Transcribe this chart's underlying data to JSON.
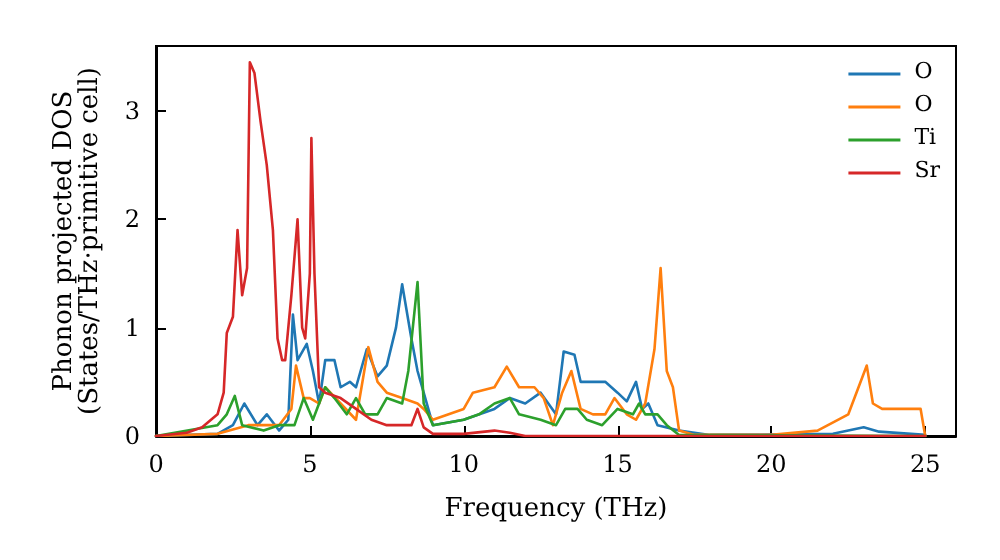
{
  "chart_data": {
    "type": "line",
    "xlabel": "Frequency (THz)",
    "ylabel": "Phonon projected DOS\n(States/THz·primitive cell)",
    "xlim": [
      0,
      26
    ],
    "ylim": [
      0,
      3.6
    ],
    "xticks": [
      0,
      5,
      10,
      15,
      20,
      25
    ],
    "yticks": [
      0,
      1,
      2,
      3
    ],
    "grid": false,
    "legend": "top right",
    "marker": "none",
    "line_style": "solid",
    "series": [
      {
        "name": "O",
        "color": "#1f77b4",
        "x": [
          0,
          2,
          2.5,
          2.87,
          3.3,
          3.6,
          4,
          4.3,
          4.45,
          4.6,
          4.9,
          5.1,
          5.3,
          5.5,
          5.8,
          6,
          6.3,
          6.5,
          6.85,
          7.2,
          7.5,
          7.8,
          8,
          8.3,
          8.5,
          8.7,
          9,
          10,
          11,
          11.5,
          12,
          12.5,
          13,
          13.25,
          13.6,
          13.8,
          14.2,
          14.6,
          15,
          15.3,
          15.6,
          15.8,
          16,
          16.3,
          17,
          18,
          22,
          23,
          23.5,
          25
        ],
        "values": [
          0,
          0.02,
          0.1,
          0.3,
          0.1,
          0.2,
          0.05,
          0.15,
          1.12,
          0.7,
          0.85,
          0.6,
          0.3,
          0.7,
          0.7,
          0.45,
          0.5,
          0.45,
          0.8,
          0.55,
          0.65,
          1.0,
          1.4,
          0.9,
          0.6,
          0.4,
          0.1,
          0.15,
          0.25,
          0.35,
          0.3,
          0.4,
          0.2,
          0.78,
          0.75,
          0.5,
          0.5,
          0.5,
          0.4,
          0.32,
          0.5,
          0.25,
          0.3,
          0.1,
          0.05,
          0.01,
          0.02,
          0.08,
          0.04,
          0.01
        ]
      },
      {
        "name": "O",
        "color": "#ff7f0e",
        "x": [
          0,
          2,
          3,
          4,
          4.4,
          4.55,
          4.8,
          5,
          5.3,
          5.5,
          6,
          6.5,
          6.9,
          7.2,
          7.5,
          8,
          8.5,
          8.7,
          9,
          10,
          10.3,
          11,
          11.4,
          11.8,
          12.3,
          12.6,
          12.9,
          13.2,
          13.5,
          13.8,
          14.2,
          14.6,
          14.9,
          15.3,
          15.6,
          15.9,
          16.2,
          16.4,
          16.6,
          16.8,
          17,
          17.5,
          20,
          21.5,
          22.5,
          23.1,
          23.3,
          23.6,
          24.3,
          24.85,
          25
        ],
        "values": [
          0,
          0.02,
          0.1,
          0.1,
          0.25,
          0.65,
          0.35,
          0.35,
          0.3,
          0.45,
          0.3,
          0.15,
          0.82,
          0.5,
          0.4,
          0.35,
          0.3,
          0.25,
          0.15,
          0.25,
          0.4,
          0.45,
          0.64,
          0.45,
          0.45,
          0.35,
          0.1,
          0.4,
          0.6,
          0.25,
          0.2,
          0.2,
          0.35,
          0.2,
          0.15,
          0.3,
          0.8,
          1.55,
          0.6,
          0.45,
          0.05,
          0.01,
          0.01,
          0.05,
          0.2,
          0.65,
          0.3,
          0.25,
          0.25,
          0.25,
          0
        ]
      },
      {
        "name": "Ti",
        "color": "#2ca02c",
        "x": [
          0,
          2,
          2.3,
          2.56,
          2.8,
          3.5,
          4,
          4.5,
          4.8,
          5.1,
          5.5,
          5.8,
          6.2,
          6.5,
          6.8,
          7.2,
          7.5,
          8,
          8.2,
          8.5,
          8.7,
          9,
          10,
          10.5,
          11,
          11.5,
          11.8,
          12.5,
          13,
          13.3,
          13.7,
          14,
          14.5,
          15,
          15.5,
          15.7,
          15.9,
          16.3,
          16.6,
          17,
          25
        ],
        "values": [
          0,
          0.1,
          0.2,
          0.37,
          0.1,
          0.05,
          0.1,
          0.1,
          0.35,
          0.15,
          0.45,
          0.35,
          0.2,
          0.35,
          0.2,
          0.2,
          0.35,
          0.3,
          0.6,
          1.42,
          0.3,
          0.1,
          0.15,
          0.2,
          0.3,
          0.35,
          0.2,
          0.15,
          0.1,
          0.25,
          0.25,
          0.15,
          0.1,
          0.25,
          0.2,
          0.3,
          0.2,
          0.2,
          0.1,
          0.01,
          0
        ]
      },
      {
        "name": "Sr",
        "color": "#d62728",
        "x": [
          0,
          1,
          1.5,
          2,
          2.2,
          2.3,
          2.5,
          2.65,
          2.8,
          2.96,
          3.05,
          3.2,
          3.4,
          3.6,
          3.8,
          3.95,
          4.1,
          4.2,
          4.4,
          4.6,
          4.75,
          4.85,
          5,
          5.05,
          5.15,
          5.3,
          5.5,
          6,
          6.5,
          7,
          7.5,
          8,
          8.3,
          8.5,
          8.7,
          9,
          10,
          11,
          11.5,
          12,
          25
        ],
        "values": [
          0,
          0.03,
          0.08,
          0.2,
          0.4,
          0.95,
          1.1,
          1.9,
          1.3,
          1.55,
          3.45,
          3.35,
          2.9,
          2.5,
          1.9,
          0.9,
          0.7,
          0.7,
          1.3,
          2.0,
          1.0,
          0.9,
          1.5,
          2.75,
          1.5,
          0.45,
          0.4,
          0.35,
          0.25,
          0.15,
          0.1,
          0.1,
          0.1,
          0.25,
          0.08,
          0.02,
          0.02,
          0.05,
          0.03,
          0,
          0
        ]
      }
    ]
  }
}
